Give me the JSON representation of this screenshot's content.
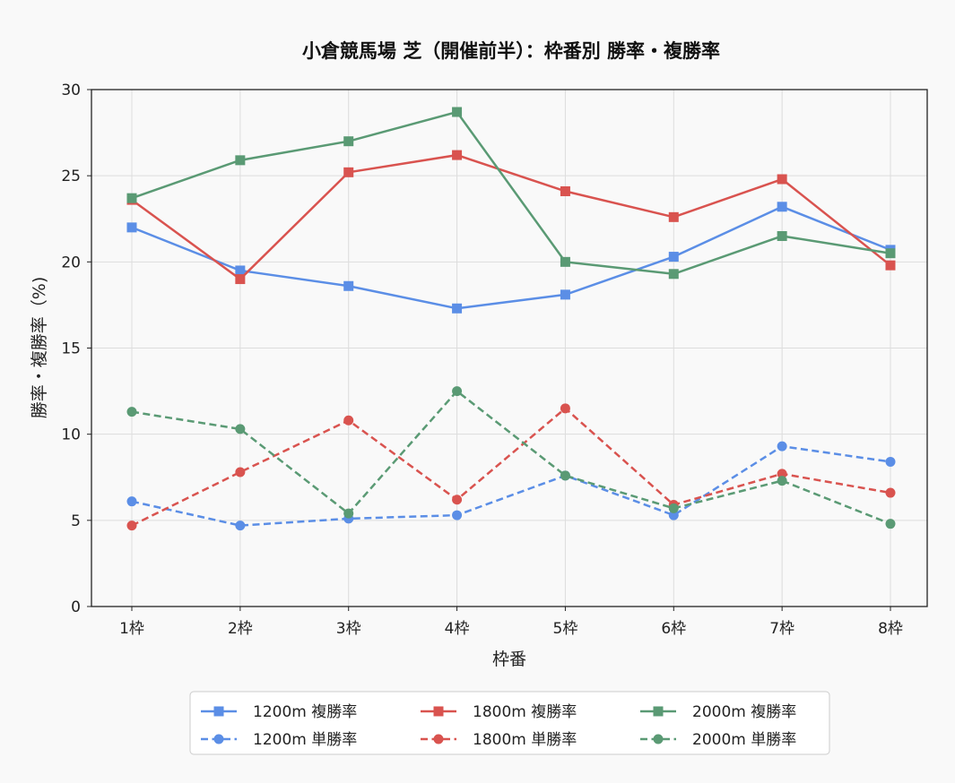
{
  "chart_data": {
    "type": "line",
    "title": "小倉競馬場 芝（開催前半）：枠番別 勝率・複勝率",
    "xlabel": "枠番",
    "ylabel": "勝率・複勝率（%)",
    "categories": [
      "1枠",
      "2枠",
      "3枠",
      "4枠",
      "5枠",
      "6枠",
      "7枠",
      "8枠"
    ],
    "ylim": [
      0,
      30
    ],
    "yticks": [
      "0",
      "5",
      "10",
      "15",
      "20",
      "25",
      "30"
    ],
    "grid": true,
    "legend_position": "bottom",
    "series": [
      {
        "name": "1200m 複勝率",
        "color": "#5b8ee6",
        "style": "solid",
        "marker": "square",
        "values": [
          22.0,
          19.5,
          18.6,
          17.3,
          18.1,
          20.3,
          23.2,
          20.7
        ]
      },
      {
        "name": "1200m 単勝率",
        "color": "#5b8ee6",
        "style": "dashed",
        "marker": "circle",
        "values": [
          6.1,
          4.7,
          5.1,
          5.3,
          7.6,
          5.3,
          9.3,
          8.4
        ]
      },
      {
        "name": "1800m 複勝率",
        "color": "#d9534f",
        "style": "solid",
        "marker": "square",
        "values": [
          23.6,
          19.0,
          25.2,
          26.2,
          24.1,
          22.6,
          24.8,
          19.8
        ]
      },
      {
        "name": "1800m 単勝率",
        "color": "#d9534f",
        "style": "dashed",
        "marker": "circle",
        "values": [
          4.7,
          7.8,
          10.8,
          6.2,
          11.5,
          5.9,
          7.7,
          6.6
        ]
      },
      {
        "name": "2000m 複勝率",
        "color": "#5a9a74",
        "style": "solid",
        "marker": "square",
        "values": [
          23.7,
          25.9,
          27.0,
          28.7,
          20.0,
          19.3,
          21.5,
          20.5
        ]
      },
      {
        "name": "2000m 単勝率",
        "color": "#5a9a74",
        "style": "dashed",
        "marker": "circle",
        "values": [
          11.3,
          10.3,
          5.4,
          12.5,
          7.6,
          5.7,
          7.3,
          4.8
        ]
      }
    ],
    "legend_order": [
      0,
      2,
      4,
      1,
      3,
      5
    ]
  }
}
